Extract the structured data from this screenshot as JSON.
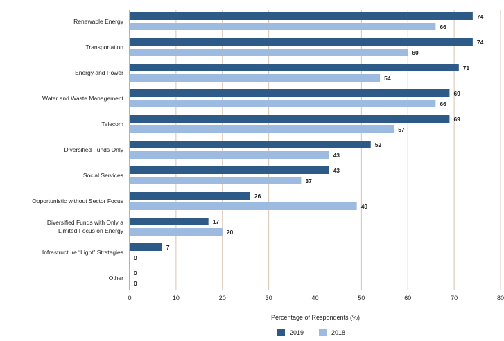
{
  "chart_data": {
    "type": "bar",
    "orientation": "horizontal",
    "categories": [
      "Renewable Energy",
      "Transportation",
      "Energy and Power",
      "Water and Waste Management",
      "Telecom",
      "Diversified Funds Only",
      "Social Services",
      "Opportunistic without Sector Focus",
      "Diversified Funds with Only a Limited Focus on Energy",
      "Infrastructure “Light” Strategies",
      "Other"
    ],
    "series": [
      {
        "name": "2019",
        "color": "#2e5a88",
        "values": [
          74,
          74,
          71,
          69,
          69,
          52,
          43,
          26,
          17,
          7,
          0
        ]
      },
      {
        "name": "2018",
        "color": "#9dbbe0",
        "values": [
          66,
          60,
          54,
          66,
          57,
          43,
          37,
          49,
          20,
          0,
          0
        ]
      }
    ],
    "xlabel": "Percentage of Respondents (%)",
    "ylabel": "",
    "xlim": [
      0,
      80
    ],
    "xticks": [
      0,
      10,
      20,
      30,
      40,
      50,
      60,
      70,
      80
    ],
    "grid": "vertical",
    "gridline_color": "#d8c4b0",
    "legend_position": "bottom-center"
  }
}
